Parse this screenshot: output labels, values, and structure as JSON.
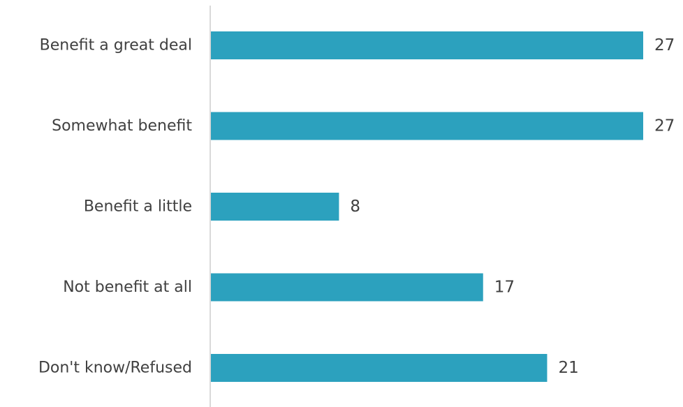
{
  "chart_data": {
    "type": "bar",
    "orientation": "horizontal",
    "categories": [
      "Benefit a great deal",
      "Somewhat benefit",
      "Benefit a little",
      "Not benefit at all",
      "Don't know/Refused"
    ],
    "values": [
      27,
      27,
      8,
      17,
      21
    ],
    "data_labels": [
      "27",
      "27",
      "8",
      "17",
      "21"
    ],
    "xlim": [
      0,
      27
    ],
    "title": "",
    "xlabel": "",
    "ylabel": "",
    "grid": false,
    "legend": "none",
    "bar_color": "#2CA1BE",
    "axis_color": "#D9D9D9",
    "text_color": "#404040"
  }
}
